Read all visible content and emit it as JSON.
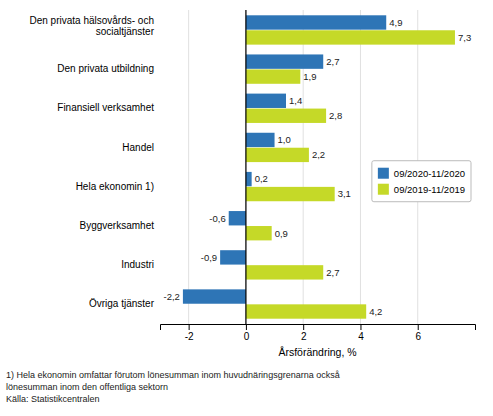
{
  "chart_data": {
    "type": "bar",
    "orientation": "horizontal",
    "categories": [
      "Övriga tjänster",
      "Industri",
      "Byggverksamhet",
      "Hela ekonomin 1)",
      "Handel",
      "Finansiell verksamhet",
      "Den privata utbildning",
      "Den privata hälsovårds- och\nsocialtjänster"
    ],
    "series": [
      {
        "name": "09/2020-11/2020",
        "color": "#2E75B6",
        "values": [
          -2.2,
          -0.9,
          -0.6,
          0.2,
          1.0,
          1.4,
          2.7,
          4.9
        ],
        "value_labels": [
          "-2,2",
          "-0,9",
          "-0,6",
          "0,2",
          "1,0",
          "1,4",
          "2,7",
          "4,9"
        ]
      },
      {
        "name": "09/2019-11/2019",
        "color": "#C5D928",
        "values": [
          4.2,
          2.7,
          0.9,
          3.1,
          2.2,
          2.8,
          1.9,
          7.3
        ],
        "value_labels": [
          "4,2",
          "2,7",
          "0,9",
          "3,1",
          "2,2",
          "2,8",
          "1,9",
          "7,3"
        ]
      }
    ],
    "x_label": "Årsförändring, %",
    "xlim": [
      -3,
      8
    ],
    "xticks": [
      -2,
      0,
      2,
      4,
      6
    ],
    "grid": true,
    "legend": "right",
    "data_labels": true,
    "annotations": [
      "1) Hela ekonomin omfattar förutom lönesumman inom huvudnäringsgrenarna också",
      "lönesumman inom den offentliga sektorn",
      "Källa: Statistikcentralen"
    ]
  }
}
